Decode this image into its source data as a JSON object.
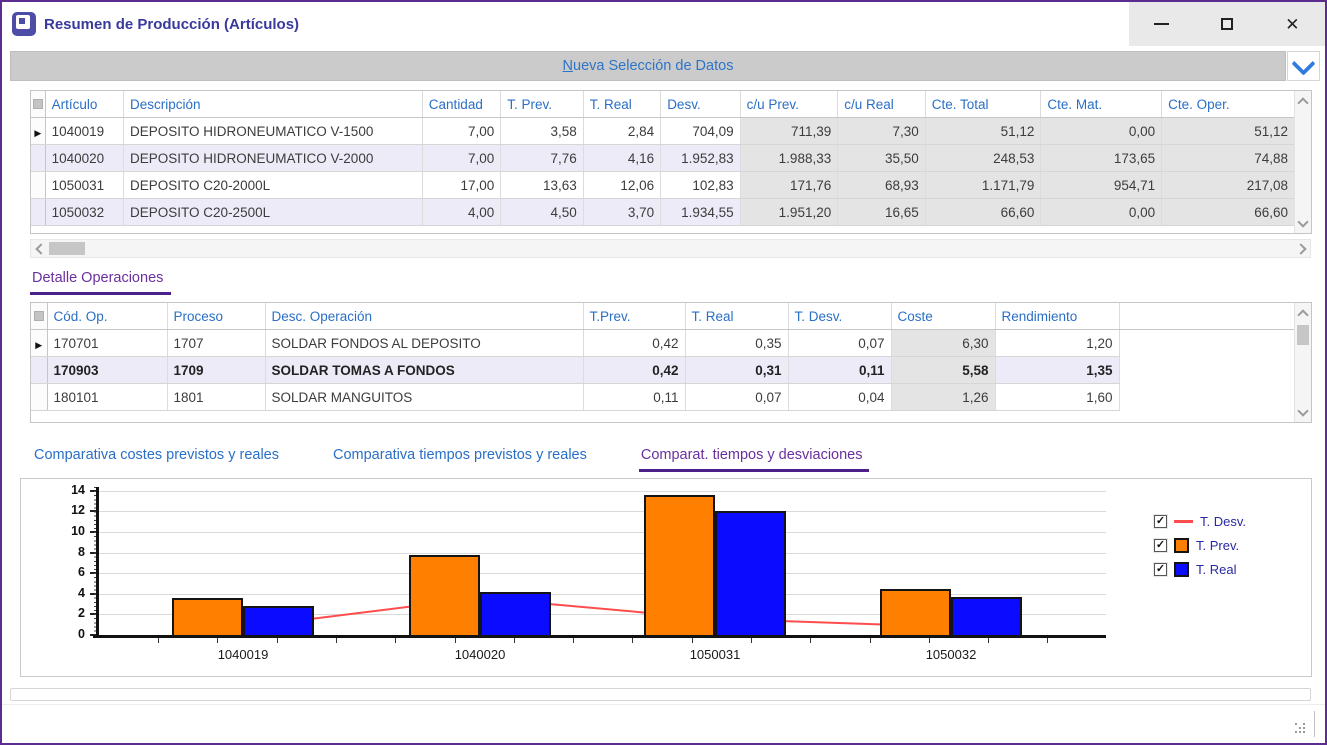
{
  "window": {
    "title": "Resumen de Producción (Artículos)",
    "controls": {
      "minimize": "—",
      "maximize": "▢",
      "close": "✕"
    }
  },
  "selector_bar": {
    "label": "Nueva Selección de Datos"
  },
  "articles_grid": {
    "columns": [
      "Artículo",
      "Descripción",
      "Cantidad",
      "T. Prev.",
      "T. Real",
      "Desv.",
      "c/u Prev.",
      "c/u Real",
      "Cte. Total",
      "Cte. Mat.",
      "Cte. Oper."
    ],
    "rows": [
      [
        "1040019",
        "DEPOSITO HIDRONEUMATICO V-1500",
        "7,00",
        "3,58",
        "2,84",
        "704,09",
        "711,39",
        "7,30",
        "51,12",
        "0,00",
        "51,12"
      ],
      [
        "1040020",
        "DEPOSITO HIDRONEUMATICO V-2000",
        "7,00",
        "7,76",
        "4,16",
        "1.952,83",
        "1.988,33",
        "35,50",
        "248,53",
        "173,65",
        "74,88"
      ],
      [
        "1050031",
        "DEPOSITO C20-2000L",
        "17,00",
        "13,63",
        "12,06",
        "102,83",
        "171,76",
        "68,93",
        "1.171,79",
        "954,71",
        "217,08"
      ],
      [
        "1050032",
        "DEPOSITO C20-2500L",
        "4,00",
        "4,50",
        "3,70",
        "1.934,55",
        "1.951,20",
        "16,65",
        "66,60",
        "0,00",
        "66,60"
      ]
    ],
    "marker_row_index": 0
  },
  "operations_section": {
    "tab_label": "Detalle Operaciones",
    "columns": [
      "Cód. Op.",
      "Proceso",
      "Desc. Operación",
      "T.Prev.",
      "T. Real",
      "T. Desv.",
      "Coste",
      "Rendimiento"
    ],
    "rows": [
      [
        "170701",
        "1707",
        "SOLDAR FONDOS AL DEPOSITO",
        "0,42",
        "0,35",
        "0,07",
        "6,30",
        "1,20"
      ],
      [
        "170903",
        "1709",
        "SOLDAR TOMAS A FONDOS",
        "0,42",
        "0,31",
        "0,11",
        "5,58",
        "1,35"
      ],
      [
        "180101",
        "1801",
        "SOLDAR MANGUITOS",
        "0,11",
        "0,07",
        "0,04",
        "1,26",
        "1,60"
      ]
    ],
    "marker_row_index": 0,
    "bold_row_index": 1
  },
  "chart_tabs": [
    {
      "label": "Comparativa costes previstos y reales",
      "active": false
    },
    {
      "label": "Comparativa tiempos previstos y reales",
      "active": false
    },
    {
      "label": "Comparat. tiempos y desviaciones",
      "active": true
    }
  ],
  "chart_data": {
    "type": "bar",
    "categories": [
      "1040019",
      "1040020",
      "1050031",
      "1050032"
    ],
    "series": [
      {
        "name": "T. Desv.",
        "type": "line",
        "color": "#FF4D4D",
        "checked": true,
        "values": [
          0.74,
          3.6,
          1.57,
          0.8
        ]
      },
      {
        "name": "T. Prev.",
        "type": "bar",
        "color": "#FF8000",
        "checked": true,
        "values": [
          3.58,
          7.76,
          13.63,
          4.5
        ]
      },
      {
        "name": "T. Real",
        "type": "bar",
        "color": "#0B0BFF",
        "checked": true,
        "values": [
          2.84,
          4.16,
          12.06,
          3.7
        ]
      }
    ],
    "title": "",
    "xlabel": "",
    "ylabel": "",
    "ylim": [
      0,
      14
    ],
    "yticks": [
      0,
      2,
      4,
      6,
      8,
      10,
      12,
      14
    ],
    "grid": true,
    "legend_position": "right",
    "legend_checkboxes": true
  },
  "colors": {
    "window_border": "#5B2D90",
    "title_text": "#3A3A9C",
    "header_text_blue": "#2A6FC7",
    "active_tab_purple": "#6A2F9F",
    "tab_underline": "#4B2189",
    "alt_row": "#EDEBF8",
    "readonly_cell": "#E4E4E4"
  },
  "icons": {
    "row_marker": "▶",
    "checkbox_check": "✓",
    "select_all": "square",
    "collapse_chevron": "chevron-down",
    "scroll_arrows": "chevron",
    "resize_grip": "dot-triangle"
  }
}
